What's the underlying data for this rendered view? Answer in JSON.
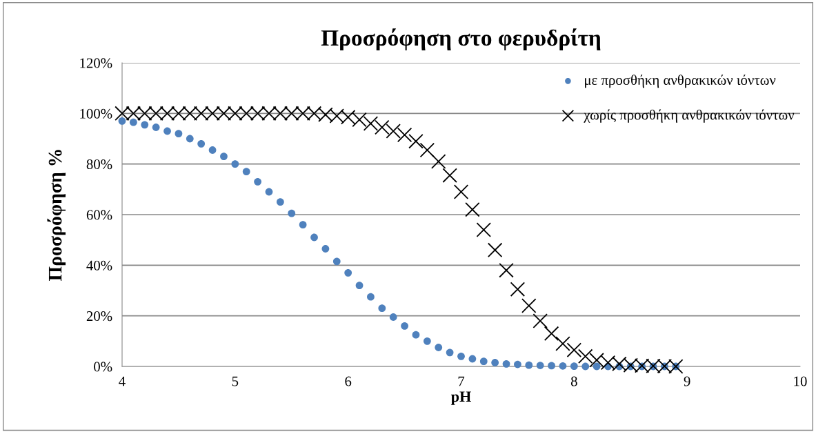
{
  "chart_data": {
    "type": "scatter",
    "title": "Προσρόφηση στο φερυδρίτη",
    "xlabel": "pH",
    "ylabel": "Προσρόφηση %",
    "x": [
      4.0,
      4.1,
      4.2,
      4.3,
      4.4,
      4.5,
      4.6,
      4.7,
      4.8,
      4.9,
      5.0,
      5.1,
      5.2,
      5.3,
      5.4,
      5.5,
      5.6,
      5.7,
      5.8,
      5.9,
      6.0,
      6.1,
      6.2,
      6.3,
      6.4,
      6.5,
      6.6,
      6.7,
      6.8,
      6.9,
      7.0,
      7.1,
      7.2,
      7.3,
      7.4,
      7.5,
      7.6,
      7.7,
      7.8,
      7.9,
      8.0,
      8.1,
      8.2,
      8.3,
      8.4,
      8.5,
      8.6,
      8.7,
      8.8,
      8.9
    ],
    "series": [
      {
        "name": "με προσθήκη ανθρακικών ιόντων",
        "color": "#4f81bd",
        "marker": "circle",
        "values": [
          97,
          96.5,
          95.5,
          94.5,
          93,
          92,
          90,
          88,
          85.5,
          83,
          80,
          77,
          73,
          69,
          65,
          60.5,
          56,
          51,
          46.5,
          41.5,
          37,
          32,
          27.5,
          23,
          19.5,
          16,
          12.5,
          10,
          7.5,
          5.5,
          4,
          3,
          2,
          1.5,
          1,
          0.8,
          0.5,
          0.4,
          0.3,
          0.2,
          0.1,
          0,
          0,
          0,
          0,
          0,
          0,
          0,
          0,
          0
        ]
      },
      {
        "name": "χωρίς προσθήκη ανθρακικών ιόντων",
        "color": "#000000",
        "marker": "cross",
        "values": [
          100,
          100,
          100,
          100,
          100,
          100,
          100,
          100,
          100,
          100,
          100,
          100,
          100,
          100,
          100,
          100,
          100,
          100,
          99.5,
          99,
          98.5,
          97.5,
          96,
          94.5,
          93,
          91.5,
          89,
          85.5,
          81,
          75.5,
          69,
          62,
          54,
          46,
          38,
          30.5,
          24,
          18,
          13,
          9,
          6.5,
          4,
          2.5,
          1.5,
          1,
          0.5,
          0.3,
          0.2,
          0.1,
          0
        ]
      }
    ],
    "xlim": [
      4,
      10
    ],
    "xticks": [
      4,
      5,
      6,
      7,
      8,
      9,
      10
    ],
    "ylim": [
      0,
      120
    ],
    "yticks": [
      {
        "value": 0,
        "label": "0%"
      },
      {
        "value": 20,
        "label": "20%"
      },
      {
        "value": 40,
        "label": "40%"
      },
      {
        "value": 60,
        "label": "60%"
      },
      {
        "value": 80,
        "label": "80%"
      },
      {
        "value": 100,
        "label": "100%"
      },
      {
        "value": 120,
        "label": "120%"
      }
    ],
    "grid": "y",
    "legend": "top right"
  }
}
